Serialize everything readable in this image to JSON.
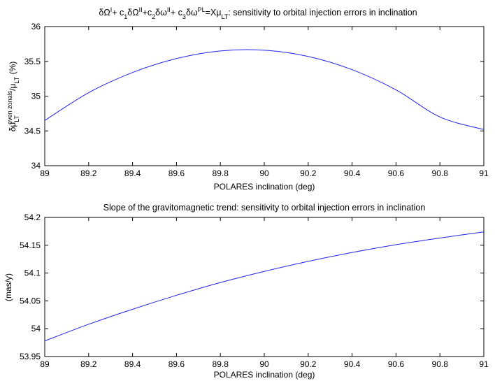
{
  "chart_data": [
    {
      "type": "line",
      "title_parts": [
        "δΩ",
        "I",
        "+ c",
        "1",
        "δΩ",
        "II",
        "+c",
        "2",
        "δω",
        "II",
        "+ c",
        "3",
        "δω",
        "PL",
        "=Xμ",
        "LT",
        ": sensitivity to orbital injection errors in inclination"
      ],
      "xlabel": "POLARES inclination (deg)",
      "ylabel_parts": [
        "δμ",
        "LT",
        "even zonals",
        "/μ",
        "LT",
        " (%)"
      ],
      "xlim": [
        89,
        91
      ],
      "ylim": [
        34,
        36
      ],
      "xticks": [
        "89",
        "89.2",
        "89.4",
        "89.6",
        "89.8",
        "90",
        "90.2",
        "90.4",
        "90.6",
        "90.8",
        "91"
      ],
      "yticks": [
        "34",
        "34.5",
        "35",
        "35.5",
        "36"
      ],
      "grid": false,
      "series": [
        {
          "color": "#2222ee",
          "x": [
            89.0,
            89.2,
            89.4,
            89.6,
            89.8,
            90.0,
            90.2,
            90.4,
            90.6,
            90.8,
            91.0
          ],
          "y": [
            34.65,
            35.05,
            35.34,
            35.54,
            35.65,
            35.66,
            35.57,
            35.38,
            35.09,
            34.7,
            34.52
          ]
        }
      ]
    },
    {
      "type": "line",
      "title": "Slope of the gravitomagnetic trend: sensitivity to orbital injection errors in inclination",
      "xlabel": "POLARES inclination (deg)",
      "ylabel": "(mas/y)",
      "xlim": [
        89,
        91
      ],
      "ylim": [
        53.95,
        54.2
      ],
      "xticks": [
        "89",
        "89.2",
        "89.4",
        "89.6",
        "89.8",
        "90",
        "90.2",
        "90.4",
        "90.6",
        "90.8",
        "91"
      ],
      "yticks": [
        "53.95",
        "54",
        "54.05",
        "54.1",
        "54.15",
        "54.2"
      ],
      "grid": false,
      "series": [
        {
          "color": "#2222ee",
          "x": [
            89.0,
            89.2,
            89.4,
            89.6,
            89.8,
            90.0,
            90.2,
            90.4,
            90.6,
            90.8,
            91.0
          ],
          "y": [
            53.978,
            54.008,
            54.035,
            54.06,
            54.083,
            54.103,
            54.121,
            54.137,
            54.151,
            54.163,
            54.174
          ]
        }
      ]
    }
  ]
}
